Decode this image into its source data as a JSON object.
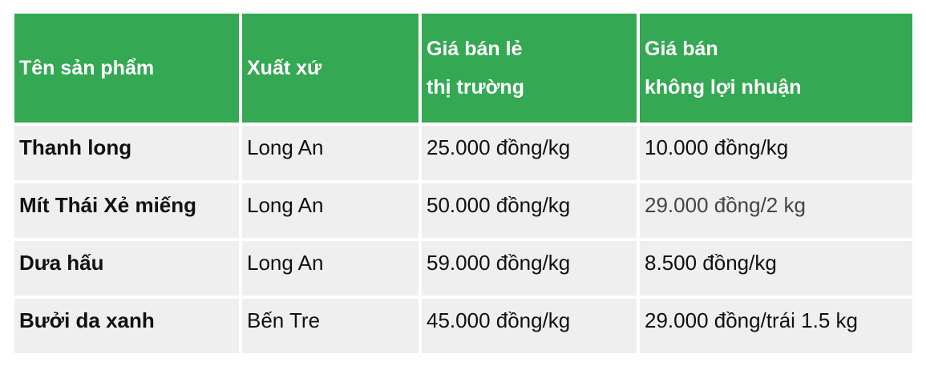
{
  "table": {
    "header_color": "#34a853",
    "row_color": "#efefef",
    "headers": [
      {
        "line1": "Tên sản phẩm",
        "line2": ""
      },
      {
        "line1": "Xuất xứ",
        "line2": ""
      },
      {
        "line1": "Giá bán lẻ",
        "line2": "thị trường"
      },
      {
        "line1": "Giá bán",
        "line2": "không lợi nhuận"
      }
    ],
    "rows": [
      {
        "product": "Thanh long",
        "origin": "Long An",
        "market_price": "25.000 đồng/kg",
        "nonprofit_price": "10.000 đồng/kg"
      },
      {
        "product": "Mít Thái Xẻ miếng",
        "origin": "Long An",
        "market_price": "50.000 đồng/kg",
        "nonprofit_price": "29.000 đồng/2 kg"
      },
      {
        "product": "Dưa hấu",
        "origin": "Long An",
        "market_price": "59.000 đồng/kg",
        "nonprofit_price": "8.500 đồng/kg"
      },
      {
        "product": "Bưởi da xanh",
        "origin": "Bến Tre",
        "market_price": "45.000 đồng/kg",
        "nonprofit_price": "29.000 đồng/trái 1.5 kg"
      }
    ]
  }
}
